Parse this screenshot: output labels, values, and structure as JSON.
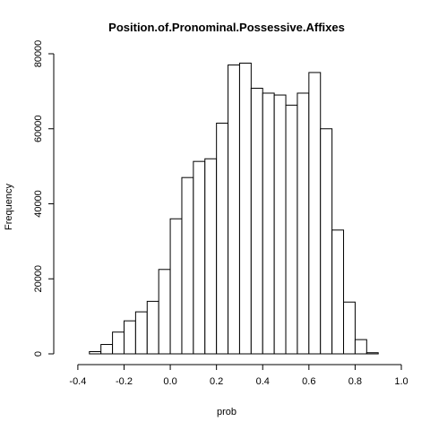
{
  "chart_data": {
    "type": "bar",
    "title": "Position.of.Pronominal.Possessive.Affixes",
    "xlabel": "prob",
    "ylabel": "Frequency",
    "xlim": [
      -0.45,
      1.0
    ],
    "ylim": [
      0,
      80000
    ],
    "x_ticks": [
      -0.4,
      -0.2,
      0.0,
      0.2,
      0.4,
      0.6,
      0.8,
      1.0
    ],
    "x_tick_labels": [
      "-0.4",
      "-0.2",
      "0.0",
      "0.2",
      "0.4",
      "0.6",
      "0.8",
      "1.0"
    ],
    "y_ticks": [
      0,
      20000,
      40000,
      60000,
      80000
    ],
    "y_tick_labels": [
      "0",
      "20000",
      "40000",
      "60000",
      "80000"
    ],
    "grid": false,
    "bin_width": 0.05,
    "bins": [
      {
        "x0": -0.4,
        "x1": -0.35,
        "value": 0
      },
      {
        "x0": -0.35,
        "x1": -0.3,
        "value": 600
      },
      {
        "x0": -0.3,
        "x1": -0.25,
        "value": 2500
      },
      {
        "x0": -0.25,
        "x1": -0.2,
        "value": 5800
      },
      {
        "x0": -0.2,
        "x1": -0.15,
        "value": 8800
      },
      {
        "x0": -0.15,
        "x1": -0.1,
        "value": 11200
      },
      {
        "x0": -0.1,
        "x1": -0.05,
        "value": 14000
      },
      {
        "x0": -0.05,
        "x1": 0.0,
        "value": 22500
      },
      {
        "x0": 0.0,
        "x1": 0.05,
        "value": 36000
      },
      {
        "x0": 0.05,
        "x1": 0.1,
        "value": 47000
      },
      {
        "x0": 0.1,
        "x1": 0.15,
        "value": 51300
      },
      {
        "x0": 0.15,
        "x1": 0.2,
        "value": 52000
      },
      {
        "x0": 0.2,
        "x1": 0.25,
        "value": 61500
      },
      {
        "x0": 0.25,
        "x1": 0.3,
        "value": 77000
      },
      {
        "x0": 0.3,
        "x1": 0.35,
        "value": 77500
      },
      {
        "x0": 0.35,
        "x1": 0.4,
        "value": 70800
      },
      {
        "x0": 0.4,
        "x1": 0.45,
        "value": 69500
      },
      {
        "x0": 0.45,
        "x1": 0.5,
        "value": 69000
      },
      {
        "x0": 0.5,
        "x1": 0.55,
        "value": 66300
      },
      {
        "x0": 0.55,
        "x1": 0.6,
        "value": 69500
      },
      {
        "x0": 0.6,
        "x1": 0.65,
        "value": 75000
      },
      {
        "x0": 0.65,
        "x1": 0.7,
        "value": 60000
      },
      {
        "x0": 0.7,
        "x1": 0.75,
        "value": 33000
      },
      {
        "x0": 0.75,
        "x1": 0.8,
        "value": 13800
      },
      {
        "x0": 0.8,
        "x1": 0.85,
        "value": 3800
      },
      {
        "x0": 0.85,
        "x1": 0.9,
        "value": 300
      },
      {
        "x0": 0.9,
        "x1": 0.95,
        "value": 0
      }
    ]
  }
}
